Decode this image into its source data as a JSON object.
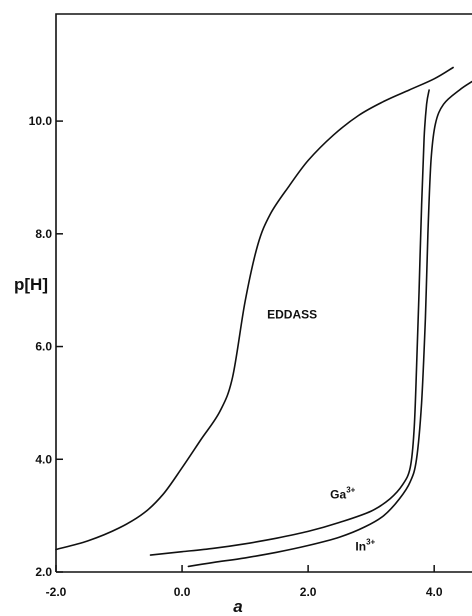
{
  "chart_data": {
    "type": "line",
    "xlabel": "a",
    "ylabel": "p[H]",
    "xlim": [
      -2.0,
      4.6
    ],
    "ylim": [
      2.0,
      11.9
    ],
    "xticks": [
      -2.0,
      0.0,
      2.0,
      4.0
    ],
    "xtick_labels": [
      "-2.0",
      "0.0",
      "2.0",
      "4.0"
    ],
    "yticks": [
      2.0,
      4.0,
      6.0,
      8.0,
      10.0
    ],
    "ytick_labels": [
      "2.0",
      "4.0",
      "6.0",
      "8.0",
      "10.0"
    ],
    "grid": false,
    "series": [
      {
        "name": "EDDASS",
        "x": [
          -2.0,
          -1.5,
          -1.0,
          -0.6,
          -0.3,
          0.0,
          0.3,
          0.6,
          0.8,
          1.0,
          1.2,
          1.4,
          1.7,
          2.0,
          2.4,
          2.8,
          3.2,
          3.6,
          4.0,
          4.3
        ],
        "y": [
          2.4,
          2.55,
          2.78,
          3.05,
          3.38,
          3.85,
          4.35,
          4.85,
          5.45,
          6.8,
          7.8,
          8.35,
          8.85,
          9.3,
          9.75,
          10.1,
          10.35,
          10.55,
          10.75,
          10.95
        ]
      },
      {
        "name": "Ga3+",
        "x": [
          -0.5,
          0.0,
          0.5,
          1.0,
          1.5,
          2.0,
          2.5,
          3.0,
          3.3,
          3.5,
          3.62,
          3.68,
          3.72,
          3.76,
          3.8,
          3.84,
          3.88,
          3.92
        ],
        "y": [
          2.3,
          2.36,
          2.42,
          2.5,
          2.6,
          2.72,
          2.88,
          3.08,
          3.3,
          3.55,
          3.85,
          4.5,
          5.6,
          7.0,
          8.5,
          9.7,
          10.3,
          10.55
        ]
      },
      {
        "name": "In3+",
        "x": [
          0.1,
          0.5,
          1.0,
          1.5,
          2.0,
          2.5,
          2.9,
          3.2,
          3.45,
          3.62,
          3.72,
          3.8,
          3.86,
          3.9,
          3.95,
          4.02,
          4.15,
          4.4,
          4.6
        ],
        "y": [
          2.1,
          2.17,
          2.25,
          2.35,
          2.47,
          2.62,
          2.8,
          3.0,
          3.3,
          3.6,
          4.0,
          5.0,
          6.5,
          8.0,
          9.3,
          9.95,
          10.3,
          10.55,
          10.7
        ]
      }
    ],
    "annotations": [
      {
        "text": "EDDASS",
        "x": 1.35,
        "y": 6.5
      },
      {
        "text": "Ga",
        "sup": "3+",
        "x": 2.35,
        "y": 3.3
      },
      {
        "text": "In",
        "sup": "3+",
        "x": 2.75,
        "y": 2.38
      }
    ]
  }
}
